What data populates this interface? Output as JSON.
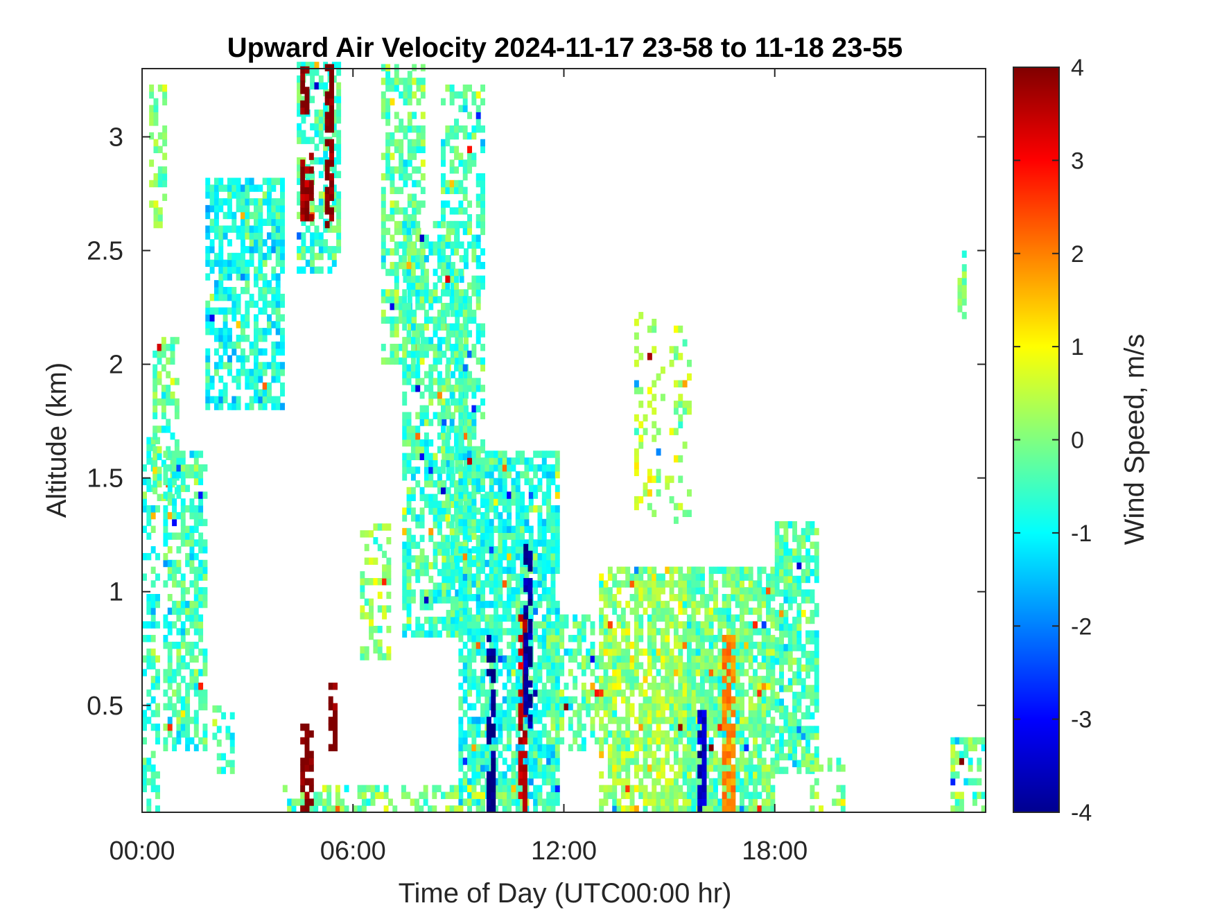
{
  "chart_data": {
    "type": "heatmap",
    "title": "Upward Air Velocity 2024-11-17 23-58 to 11-18 23-55",
    "xlabel": "Time of Day (UTC00:00 hr)",
    "ylabel": "Altitude (km)",
    "xlim": [
      0,
      24
    ],
    "ylim": [
      0.03,
      3.3
    ],
    "x_ticks": [
      {
        "value": 0,
        "label": "00:00"
      },
      {
        "value": 6,
        "label": "06:00"
      },
      {
        "value": 12,
        "label": "12:00"
      },
      {
        "value": 18,
        "label": "18:00"
      }
    ],
    "y_ticks": [
      {
        "value": 0.5,
        "label": "0.5"
      },
      {
        "value": 1,
        "label": "1"
      },
      {
        "value": 1.5,
        "label": "1.5"
      },
      {
        "value": 2,
        "label": "2"
      },
      {
        "value": 2.5,
        "label": "2.5"
      },
      {
        "value": 3,
        "label": "3"
      }
    ],
    "colorbar": {
      "label": "Wind Speed, m/s",
      "colormap": "jet",
      "clim": [
        -4,
        4
      ],
      "ticks": [
        {
          "value": 4,
          "label": "4"
        },
        {
          "value": 3,
          "label": "3"
        },
        {
          "value": 2,
          "label": "2"
        },
        {
          "value": 1,
          "label": "1"
        },
        {
          "value": 0,
          "label": "0"
        },
        {
          "value": -1,
          "label": "-1"
        },
        {
          "value": -2,
          "label": "-2"
        },
        {
          "value": -3,
          "label": "-3"
        },
        {
          "value": -4,
          "label": "-4"
        }
      ]
    },
    "colors": {
      "low": "#00008f",
      "mid": "#80ff80",
      "high": "#800000"
    },
    "grid": false,
    "regions": [
      {
        "t": [
          0.0,
          0.5
        ],
        "alt": [
          0.03,
          1.7
        ],
        "mean": -0.6,
        "density": 0.5
      },
      {
        "t": [
          0.2,
          0.6
        ],
        "alt": [
          2.6,
          3.2
        ],
        "mean": 0.0,
        "density": 0.45
      },
      {
        "t": [
          0.3,
          1.0
        ],
        "alt": [
          1.4,
          2.1
        ],
        "mean": -0.2,
        "density": 0.55
      },
      {
        "t": [
          0.6,
          1.8
        ],
        "alt": [
          0.3,
          1.6
        ],
        "mean": -0.5,
        "density": 0.6
      },
      {
        "t": [
          1.8,
          4.0
        ],
        "alt": [
          1.8,
          2.8
        ],
        "mean": -0.8,
        "density": 0.65
      },
      {
        "t": [
          2.0,
          2.6
        ],
        "alt": [
          0.2,
          0.5
        ],
        "mean": -0.5,
        "density": 0.4
      },
      {
        "t": [
          4.4,
          5.6
        ],
        "alt": [
          2.4,
          3.3
        ],
        "mean": -0.5,
        "density": 0.6
      },
      {
        "t": [
          6.2,
          7.0
        ],
        "alt": [
          0.7,
          1.3
        ],
        "mean": 0.2,
        "density": 0.45
      },
      {
        "t": [
          6.8,
          8.0
        ],
        "alt": [
          2.0,
          3.3
        ],
        "mean": -0.2,
        "density": 0.55
      },
      {
        "t": [
          7.4,
          9.2
        ],
        "alt": [
          0.8,
          2.6
        ],
        "mean": -0.5,
        "density": 0.65
      },
      {
        "t": [
          8.5,
          9.7
        ],
        "alt": [
          1.1,
          3.2
        ],
        "mean": -0.4,
        "density": 0.45
      },
      {
        "t": [
          9.0,
          11.8
        ],
        "alt": [
          0.03,
          1.6
        ],
        "mean": -0.7,
        "density": 0.75
      },
      {
        "t": [
          11.5,
          13.2
        ],
        "alt": [
          0.3,
          0.9
        ],
        "mean": -0.3,
        "density": 0.55
      },
      {
        "t": [
          13.0,
          16.0
        ],
        "alt": [
          0.03,
          1.1
        ],
        "mean": 0.2,
        "density": 0.75
      },
      {
        "t": [
          14.0,
          15.6
        ],
        "alt": [
          1.3,
          2.2
        ],
        "mean": 0.4,
        "density": 0.2
      },
      {
        "t": [
          15.5,
          18.0
        ],
        "alt": [
          0.03,
          1.1
        ],
        "mean": -0.2,
        "density": 0.8
      },
      {
        "t": [
          18.0,
          19.2
        ],
        "alt": [
          0.2,
          1.3
        ],
        "mean": -0.4,
        "density": 0.7
      },
      {
        "t": [
          4.0,
          11.0
        ],
        "alt": [
          0.03,
          0.15
        ],
        "mean": 0.0,
        "density": 0.5
      },
      {
        "t": [
          19.0,
          20.0
        ],
        "alt": [
          0.03,
          0.3
        ],
        "mean": 0.0,
        "density": 0.3
      },
      {
        "t": [
          23.0,
          24.0
        ],
        "alt": [
          0.03,
          0.35
        ],
        "mean": -0.2,
        "density": 0.5
      },
      {
        "t": [
          23.2,
          23.4
        ],
        "alt": [
          2.2,
          2.5
        ],
        "mean": 0.0,
        "density": 0.6
      }
    ],
    "strong_columns": [
      {
        "t": [
          4.5,
          4.8
        ],
        "alt": [
          0.03,
          0.4
        ],
        "value": 4
      },
      {
        "t": [
          4.5,
          4.8
        ],
        "alt": [
          2.6,
          2.9
        ],
        "value": 3.8
      },
      {
        "t": [
          4.5,
          4.7
        ],
        "alt": [
          3.1,
          3.3
        ],
        "value": 4
      },
      {
        "t": [
          5.2,
          5.4
        ],
        "alt": [
          2.6,
          3.3
        ],
        "value": 4
      },
      {
        "t": [
          5.3,
          5.5
        ],
        "alt": [
          0.3,
          0.6
        ],
        "value": 4
      },
      {
        "t": [
          9.8,
          9.95
        ],
        "alt": [
          0.03,
          0.8
        ],
        "value": -4
      },
      {
        "t": [
          10.7,
          10.85
        ],
        "alt": [
          0.03,
          0.9
        ],
        "value": 3.5
      },
      {
        "t": [
          10.85,
          11.0
        ],
        "alt": [
          0.4,
          1.2
        ],
        "value": -3.8
      },
      {
        "t": [
          15.8,
          16.0
        ],
        "alt": [
          0.03,
          0.5
        ],
        "value": -3.5
      },
      {
        "t": [
          16.5,
          16.8
        ],
        "alt": [
          0.03,
          0.8
        ],
        "value": 2.0
      }
    ]
  }
}
